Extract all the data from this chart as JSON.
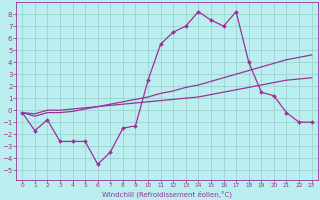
{
  "xlabel": "Windchill (Refroidissement éolien,°C)",
  "background_color": "#bbeeee",
  "grid_color": "#99cccc",
  "line_color": "#993399",
  "x_ticks": [
    0,
    1,
    2,
    3,
    4,
    5,
    6,
    7,
    8,
    9,
    10,
    11,
    12,
    13,
    14,
    15,
    16,
    17,
    18,
    19,
    20,
    21,
    22,
    23
  ],
  "y_ticks": [
    -5,
    -4,
    -3,
    -2,
    -1,
    0,
    1,
    2,
    3,
    4,
    5,
    6,
    7,
    8
  ],
  "ylim": [
    -5.8,
    9.0
  ],
  "xlim": [
    -0.5,
    23.5
  ],
  "curve1_x": [
    0,
    1,
    2,
    3,
    4,
    5,
    6,
    7,
    8,
    9,
    10,
    11,
    12,
    13,
    14,
    15,
    16,
    17,
    18,
    19,
    20,
    21,
    22,
    23
  ],
  "curve1_y": [
    -0.2,
    -1.7,
    -0.8,
    -2.6,
    -2.6,
    -2.6,
    -4.5,
    -3.5,
    -1.5,
    -1.3,
    2.5,
    5.5,
    6.5,
    7.0,
    8.2,
    7.5,
    7.0,
    8.2,
    4.0,
    1.5,
    1.2,
    -0.2,
    -1.0,
    -1.0
  ],
  "curve2_x": [
    0,
    1,
    2,
    3,
    4,
    5,
    6,
    7,
    8,
    9,
    10,
    11,
    12,
    13,
    14,
    15,
    16,
    17,
    18,
    19,
    20,
    21,
    22,
    23
  ],
  "curve2_y": [
    -0.2,
    -0.3,
    -0.0,
    0.0,
    0.1,
    0.2,
    0.3,
    0.4,
    0.5,
    0.6,
    0.7,
    0.8,
    0.9,
    1.0,
    1.1,
    1.3,
    1.5,
    1.7,
    1.9,
    2.1,
    2.3,
    2.5,
    2.6,
    2.7
  ],
  "curve3_x": [
    0,
    1,
    2,
    3,
    4,
    5,
    6,
    7,
    8,
    9,
    10,
    11,
    12,
    13,
    14,
    15,
    16,
    17,
    18,
    19,
    20,
    21,
    22,
    23
  ],
  "curve3_y": [
    -0.2,
    -0.5,
    -0.2,
    -0.2,
    -0.1,
    0.1,
    0.3,
    0.5,
    0.7,
    0.9,
    1.1,
    1.4,
    1.6,
    1.9,
    2.1,
    2.4,
    2.7,
    3.0,
    3.3,
    3.6,
    3.9,
    4.2,
    4.4,
    4.6
  ]
}
